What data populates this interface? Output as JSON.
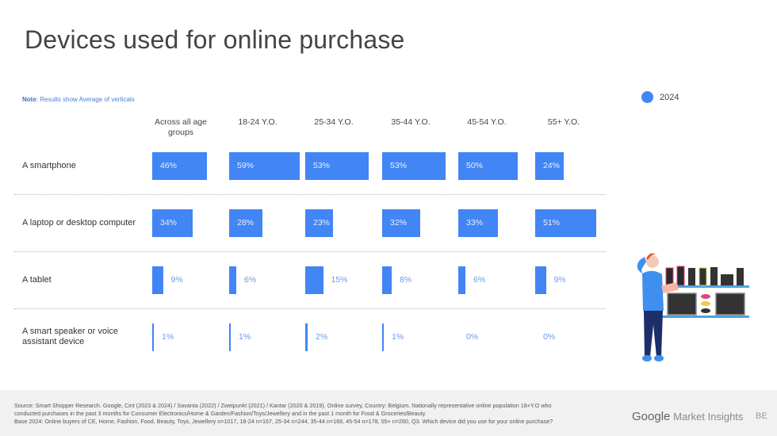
{
  "title": "Devices used for online purchase",
  "note": {
    "label": "Note",
    "text": ": Results show Average of verticals"
  },
  "legend": {
    "label": "2024",
    "color": "#4285f4"
  },
  "columns": [
    "Across all age groups",
    "18-24 Y.O.",
    "25-34 Y.O.",
    "35-44 Y.O.",
    "45-54 Y.O.",
    "55+ Y.O."
  ],
  "rows": [
    {
      "label": "A smartphone",
      "values": [
        "46%",
        "59%",
        "53%",
        "53%",
        "50%",
        "24%"
      ]
    },
    {
      "label": "A laptop or desktop computer",
      "values": [
        "34%",
        "28%",
        "23%",
        "32%",
        "33%",
        "51%"
      ]
    },
    {
      "label": "A tablet",
      "values": [
        "9%",
        "6%",
        "15%",
        "8%",
        "6%",
        "9%"
      ]
    },
    {
      "label": "A smart speaker or voice assistant device",
      "values": [
        "1%",
        "1%",
        "2%",
        "1%",
        "0%",
        "0%"
      ]
    }
  ],
  "chart_data": {
    "type": "bar",
    "title": "Devices used for online purchase",
    "subtitle": "Note: Results show Average of verticals",
    "orientation": "horizontal",
    "categories": [
      "A smartphone",
      "A laptop or desktop computer",
      "A tablet",
      "A smart speaker or voice assistant device"
    ],
    "series": [
      {
        "name": "Across all age groups",
        "values": [
          46,
          34,
          9,
          1
        ]
      },
      {
        "name": "18-24 Y.O.",
        "values": [
          59,
          28,
          6,
          1
        ]
      },
      {
        "name": "25-34 Y.O.",
        "values": [
          53,
          23,
          15,
          2
        ]
      },
      {
        "name": "35-44 Y.O.",
        "values": [
          53,
          32,
          8,
          1
        ]
      },
      {
        "name": "45-54 Y.O.",
        "values": [
          50,
          33,
          6,
          0
        ]
      },
      {
        "name": "55+ Y.O.",
        "values": [
          24,
          51,
          9,
          0
        ]
      }
    ],
    "legend": [
      "2024"
    ],
    "legend_position": "top-right",
    "unit": "%",
    "grid": false
  },
  "footer": {
    "source_lines": [
      "Source: Smart Shopper Research. Google, Cint (2023 & 2024) /  Savanta (2022) / Zweipunkt (2021) / Kantar (2020 & 2019). Online survey, Country: Belgium. Nationally representative online population 18+Y.O who",
      "conducted purchases in the past 3 months for Consumer Electronics/Home & Garden/Fashion/Toys/Jewellery and in the past 1 month for Food & Groceries/Beauty.",
      "Base 2024: Online buyers of CE, Home, Fashion, Food, Beauty, Toys, Jewellery n=1017, 18-24 n=167, 25-34 n=244, 35-44 n=168, 45-54 n=178, 55+ n=260, Q3. Which device did you use for your online purchase?"
    ],
    "brand_google": "Google",
    "brand_product": "Market Insights",
    "country": "BE"
  }
}
